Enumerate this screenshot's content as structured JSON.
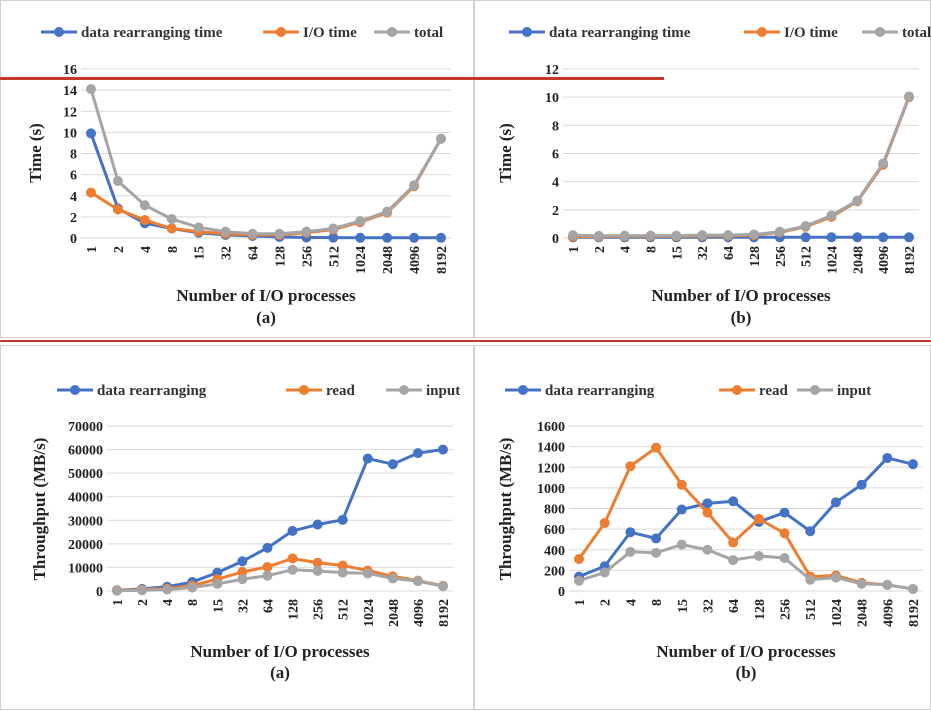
{
  "palette": {
    "blue": "#4472C4",
    "orange": "#ED7D31",
    "gray": "#A5A5A5",
    "grid": "#d9d9d9",
    "red": "#c0392b"
  },
  "chart_data": [
    {
      "type": "line",
      "panel_label": "(a)",
      "title": "",
      "xlabel": "Number of I/O processes",
      "ylabel": "Time (s)",
      "categories": [
        "1",
        "2",
        "4",
        "8",
        "15",
        "32",
        "64",
        "128",
        "256",
        "512",
        "1024",
        "2048",
        "4096",
        "8192"
      ],
      "ylim": [
        0,
        16
      ],
      "yticks": [
        0,
        2,
        4,
        6,
        8,
        10,
        12,
        14,
        16
      ],
      "legend": "top",
      "series": [
        {
          "name": "data rearranging time",
          "color": "#4472C4",
          "values": [
            9.9,
            2.8,
            1.4,
            0.9,
            0.5,
            0.3,
            0.2,
            0.1,
            0.05,
            0.03,
            0.02,
            0.02,
            0.02,
            0.02
          ]
        },
        {
          "name": "I/O time",
          "color": "#ED7D31",
          "values": [
            4.3,
            2.7,
            1.7,
            0.9,
            0.6,
            0.4,
            0.3,
            0.3,
            0.5,
            0.8,
            1.5,
            2.4,
            4.9,
            9.4
          ]
        },
        {
          "name": "total",
          "color": "#A5A5A5",
          "values": [
            14.1,
            5.4,
            3.1,
            1.8,
            1.0,
            0.6,
            0.4,
            0.4,
            0.6,
            0.9,
            1.6,
            2.5,
            5.0,
            9.4
          ]
        }
      ]
    },
    {
      "type": "line",
      "panel_label": "(b)",
      "title": "",
      "xlabel": "Number of I/O processes",
      "ylabel": "Time (s)",
      "categories": [
        "1",
        "2",
        "4",
        "8",
        "15",
        "32",
        "64",
        "128",
        "256",
        "512",
        "1024",
        "2048",
        "4096",
        "8192"
      ],
      "ylim": [
        0,
        12
      ],
      "yticks": [
        0,
        2,
        4,
        6,
        8,
        10,
        12
      ],
      "legend": "top",
      "series": [
        {
          "name": "data rearranging time",
          "color": "#4472C4",
          "values": [
            0.05,
            0.05,
            0.05,
            0.05,
            0.05,
            0.05,
            0.05,
            0.05,
            0.05,
            0.05,
            0.05,
            0.05,
            0.05,
            0.05
          ]
        },
        {
          "name": "I/O time",
          "color": "#ED7D31",
          "values": [
            0.1,
            0.1,
            0.12,
            0.12,
            0.12,
            0.15,
            0.15,
            0.2,
            0.4,
            0.8,
            1.5,
            2.6,
            5.2,
            10.0
          ]
        },
        {
          "name": "total",
          "color": "#A5A5A5",
          "values": [
            0.2,
            0.15,
            0.17,
            0.17,
            0.17,
            0.2,
            0.2,
            0.25,
            0.45,
            0.85,
            1.6,
            2.65,
            5.3,
            10.05
          ]
        }
      ]
    },
    {
      "type": "line",
      "panel_label": "(a)",
      "title": "",
      "xlabel": "Number of I/O processes",
      "ylabel": "Throughput  (MB/s)",
      "categories": [
        "1",
        "2",
        "4",
        "8",
        "15",
        "32",
        "64",
        "128",
        "256",
        "512",
        "1024",
        "2048",
        "4096",
        "8192"
      ],
      "ylim": [
        0,
        70000
      ],
      "yticks": [
        0,
        10000,
        20000,
        30000,
        40000,
        50000,
        60000,
        70000
      ],
      "legend": "top",
      "series": [
        {
          "name": "data rearranging",
          "color": "#4472C4",
          "values": [
            300,
            900,
            1800,
            3800,
            7800,
            12600,
            18300,
            25500,
            28200,
            30200,
            56200,
            53800,
            58500,
            60000
          ]
        },
        {
          "name": "read",
          "color": "#ED7D31",
          "values": [
            300,
            600,
            1000,
            2300,
            5000,
            8100,
            10200,
            13800,
            12000,
            10800,
            8700,
            6200,
            4400,
            2200
          ]
        },
        {
          "name": "input",
          "color": "#A5A5A5",
          "values": [
            100,
            300,
            600,
            1500,
            3000,
            5000,
            6500,
            9000,
            8500,
            7800,
            7500,
            5300,
            4200,
            2000
          ]
        }
      ]
    },
    {
      "type": "line",
      "panel_label": "(b)",
      "title": "",
      "xlabel": "Number of I/O processes",
      "ylabel": "Throughput  (MB/s)",
      "categories": [
        "1",
        "2",
        "4",
        "8",
        "15",
        "32",
        "64",
        "128",
        "256",
        "512",
        "1024",
        "2048",
        "4096",
        "8192"
      ],
      "ylim": [
        0,
        1600
      ],
      "yticks": [
        0,
        200,
        400,
        600,
        800,
        1000,
        1200,
        1400,
        1600
      ],
      "legend": "top",
      "series": [
        {
          "name": "data rearranging",
          "color": "#4472C4",
          "values": [
            140,
            240,
            570,
            510,
            790,
            850,
            870,
            670,
            760,
            580,
            860,
            1030,
            1290,
            1230
          ]
        },
        {
          "name": "read",
          "color": "#ED7D31",
          "values": [
            310,
            660,
            1210,
            1390,
            1030,
            760,
            470,
            700,
            560,
            140,
            150,
            80,
            60,
            20
          ]
        },
        {
          "name": "input",
          "color": "#A5A5A5",
          "values": [
            100,
            180,
            380,
            370,
            450,
            400,
            300,
            340,
            320,
            110,
            130,
            70,
            60,
            20
          ]
        }
      ]
    }
  ]
}
